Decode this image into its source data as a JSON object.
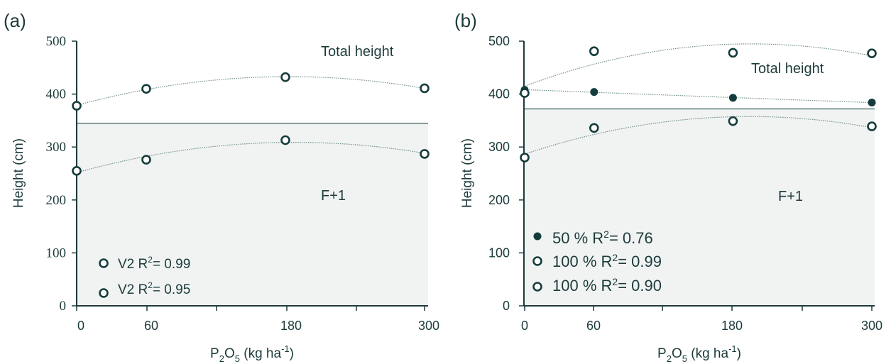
{
  "chart_data": [
    {
      "type": "scatter",
      "panel_label": "(a)",
      "xlabel": {
        "base": "P",
        "sub1": "2",
        "mid": "O",
        "sub2": "5",
        "rest": " (kg ha",
        "sup": "-1",
        "end": ")"
      },
      "ylabel": "Height (cm)",
      "x_ticks": [
        "0",
        "60",
        "180",
        "300"
      ],
      "y_ticks": [
        "0",
        "100",
        "200",
        "300",
        "400",
        "500"
      ],
      "ylim": [
        0,
        500
      ],
      "horizontal_line": 345,
      "shading_below_line": true,
      "annotations": [
        "Total height",
        "F+1"
      ],
      "series": [
        {
          "name": "V2 R2= 0.99",
          "legend": {
            "text": "V2 R",
            "sup": "2",
            "rest": "= 0.99"
          },
          "marker": "open",
          "x": [
            0,
            60,
            180,
            300
          ],
          "y": [
            378,
            410,
            432,
            411
          ]
        },
        {
          "name": "V2 R2= 0.95",
          "legend": {
            "text": "V2  R",
            "sup": "2",
            "rest": "= 0.95"
          },
          "marker": "open",
          "x": [
            0,
            60,
            180,
            300
          ],
          "y": [
            255,
            276,
            313,
            287
          ]
        }
      ]
    },
    {
      "type": "scatter",
      "panel_label": "(b)",
      "xlabel": {
        "base": "P",
        "sub1": "2",
        "mid": "O",
        "sub2": "5",
        "rest": " (kg ha",
        "sup": "-1",
        "end": ")"
      },
      "ylabel": "Height (cm)",
      "x_ticks": [
        "0",
        "60",
        "180",
        "300"
      ],
      "y_ticks": [
        "0",
        "100",
        "200",
        "300",
        "400",
        "500"
      ],
      "ylim": [
        0,
        500
      ],
      "horizontal_line": 372,
      "shading_below_line": true,
      "annotations": [
        "Total height",
        "F+1"
      ],
      "series": [
        {
          "name": "50 % R2= 0.76",
          "legend": {
            "text": "50 % R",
            "sup": "2",
            "rest": "= 0.76"
          },
          "marker": "filled",
          "x": [
            0,
            60,
            180,
            300
          ],
          "y": [
            408,
            404,
            393,
            384
          ]
        },
        {
          "name": "100 % R2= 0.99",
          "legend": {
            "text": "100 % R",
            "sup": "2",
            "rest": "= 0.99"
          },
          "marker": "open",
          "x": [
            0,
            60,
            180,
            300
          ],
          "y": [
            402,
            481,
            478,
            477
          ]
        },
        {
          "name": "100 % R2= 0.90",
          "legend": {
            "text": "100 % R",
            "sup": "2",
            "rest": "= 0.90"
          },
          "marker": "open",
          "x": [
            0,
            60,
            180,
            300
          ],
          "y": [
            280,
            336,
            349,
            339
          ]
        }
      ]
    }
  ],
  "colors": {
    "axis": "#1d3b3b",
    "marker": "#153c3c",
    "fit": "#6f8f8a",
    "shade": "#f1f3f3"
  }
}
